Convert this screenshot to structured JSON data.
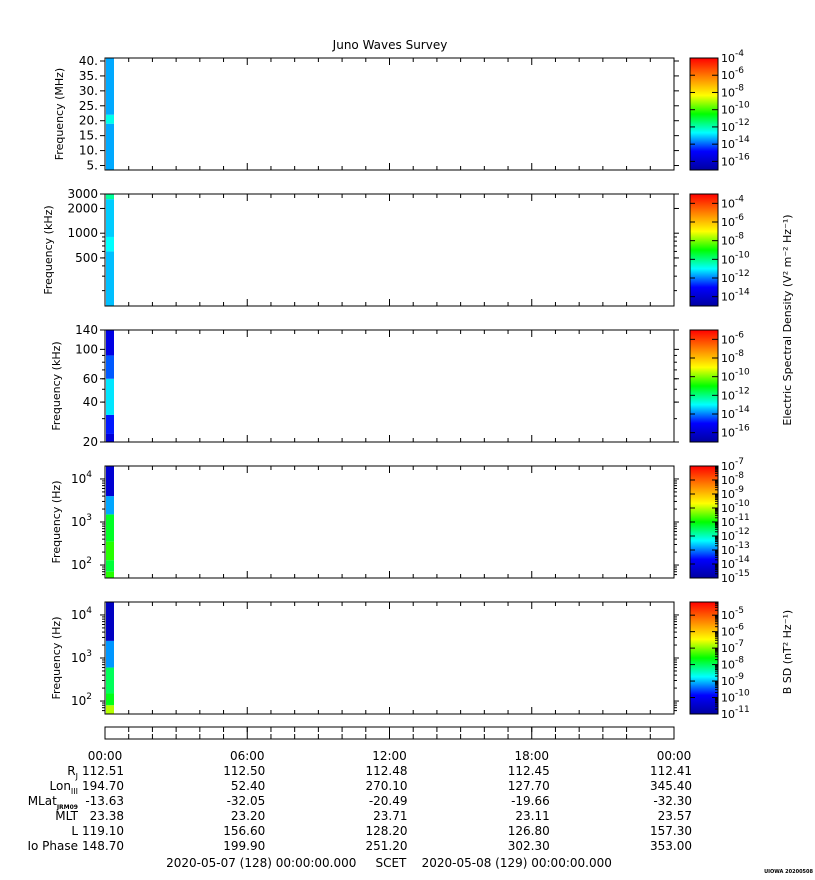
{
  "chart_data": {
    "type": "heatmap",
    "title": "Juno Waves Survey",
    "colormap": [
      "#0000a0",
      "#0000ff",
      "#00ffff",
      "#00ff00",
      "#ffff00",
      "#ff8000",
      "#ff0000"
    ],
    "panels": [
      {
        "ylabel": "Frequency (MHz)",
        "y_scale": "linear",
        "ylim": [
          3.5,
          41
        ],
        "yticks": [
          {
            "v": 5,
            "t": "5."
          },
          {
            "v": 10,
            "t": "10."
          },
          {
            "v": 15,
            "t": "15."
          },
          {
            "v": 20,
            "t": "20."
          },
          {
            "v": 25,
            "t": "25."
          },
          {
            "v": 30,
            "t": "30."
          },
          {
            "v": 35,
            "t": "35."
          },
          {
            "v": 40,
            "t": "40."
          }
        ],
        "cbar": {
          "range": [
            -17,
            -4
          ],
          "ticks": [
            -4,
            -6,
            -8,
            -10,
            -12,
            -14,
            -16
          ]
        },
        "column": [
          {
            "from": 3.5,
            "to": 19,
            "value": -13.4
          },
          {
            "from": 19,
            "to": 22,
            "value": -12.5
          },
          {
            "from": 22,
            "to": 41,
            "value": -13.4
          }
        ]
      },
      {
        "ylabel": "Frequency (kHz)",
        "y_scale": "log",
        "ylim": [
          130,
          3000
        ],
        "yticks": [
          {
            "v": 500,
            "t": "500"
          },
          {
            "v": 1000,
            "t": "1000"
          },
          {
            "v": 2000,
            "t": "2000"
          },
          {
            "v": 3000,
            "t": "3000"
          }
        ],
        "cbar": {
          "range": [
            -15,
            -3
          ],
          "ticks": [
            -4,
            -6,
            -8,
            -10,
            -12,
            -14
          ]
        },
        "column": [
          {
            "from": 130,
            "to": 600,
            "value": -11.5
          },
          {
            "from": 600,
            "to": 900,
            "value": -11.0
          },
          {
            "from": 900,
            "to": 2600,
            "value": -11.4
          },
          {
            "from": 2600,
            "to": 3000,
            "value": -10.2
          }
        ]
      },
      {
        "ylabel": "Frequency (kHz)",
        "y_scale": "log",
        "ylim": [
          20,
          140
        ],
        "yticks": [
          {
            "v": 20,
            "t": "20"
          },
          {
            "v": 40,
            "t": "40"
          },
          {
            "v": 60,
            "t": "60"
          },
          {
            "v": 100,
            "t": "100"
          },
          {
            "v": 140,
            "t": "140"
          }
        ],
        "cbar": {
          "range": [
            -17,
            -5
          ],
          "ticks": [
            -6,
            -8,
            -10,
            -12,
            -14,
            -16
          ]
        },
        "column": [
          {
            "from": 20,
            "to": 23,
            "value": -15.8
          },
          {
            "from": 23,
            "to": 32,
            "value": -14.8
          },
          {
            "from": 32,
            "to": 60,
            "value": -13.2
          },
          {
            "from": 60,
            "to": 90,
            "value": -14.3
          },
          {
            "from": 90,
            "to": 140,
            "value": -15.6
          }
        ]
      },
      {
        "ylabel": "Frequency (Hz)",
        "y_scale": "log",
        "ylim": [
          50,
          20000
        ],
        "yticks": [
          {
            "v": 100,
            "t": "10",
            "e": "2"
          },
          {
            "v": 1000,
            "t": "10",
            "e": "3"
          },
          {
            "v": 10000,
            "t": "10",
            "e": "4"
          }
        ],
        "cbar": {
          "range": [
            -15,
            -7
          ],
          "ticks": [
            -7,
            -8,
            -9,
            -10,
            -11,
            -12,
            -13,
            -14,
            -15
          ]
        },
        "column": [
          {
            "from": 50,
            "to": 70,
            "value": -10.8
          },
          {
            "from": 70,
            "to": 130,
            "value": -11.3
          },
          {
            "from": 130,
            "to": 350,
            "value": -10.8
          },
          {
            "from": 350,
            "to": 1500,
            "value": -11.2
          },
          {
            "from": 1500,
            "to": 4000,
            "value": -12.8
          },
          {
            "from": 4000,
            "to": 20000,
            "value": -14.3
          }
        ]
      },
      {
        "ylabel": "B SD (nT² Hz⁻¹)",
        "panel_ylabel": "Frequency (Hz)",
        "y_scale": "log",
        "ylim": [
          50,
          20000
        ],
        "yticks": [
          {
            "v": 100,
            "t": "10",
            "e": "2"
          },
          {
            "v": 1000,
            "t": "10",
            "e": "3"
          },
          {
            "v": 10000,
            "t": "10",
            "e": "4"
          }
        ],
        "cbar": {
          "range": [
            -11,
            -4.2
          ],
          "ticks": [
            -5,
            -6,
            -7,
            -8,
            -9,
            -10,
            -11
          ]
        },
        "column": [
          {
            "from": 50,
            "to": 80,
            "value": -6.8
          },
          {
            "from": 80,
            "to": 150,
            "value": -7.7
          },
          {
            "from": 150,
            "to": 600,
            "value": -8.0
          },
          {
            "from": 600,
            "to": 2500,
            "value": -9.2
          },
          {
            "from": 2500,
            "to": 20000,
            "value": -10.6
          }
        ]
      }
    ],
    "shared_cbar_label": "Electric Spectral Density (V² m⁻² Hz⁻¹)",
    "time_labels": [
      "00:00",
      "06:00",
      "12:00",
      "18:00",
      "00:00"
    ],
    "ephemeris": [
      {
        "label": "R",
        "sub": "J",
        "values": [
          "112.51",
          "112.50",
          "112.48",
          "112.45",
          "112.41"
        ]
      },
      {
        "label": "Lon",
        "sub": "III",
        "values": [
          "194.70",
          "52.40",
          "270.10",
          "127.70",
          "345.40"
        ]
      },
      {
        "label": "MLat",
        "sub": "JRM09",
        "values": [
          "-13.63",
          "-32.05",
          "-20.49",
          "-19.66",
          "-32.30"
        ]
      },
      {
        "label": "MLT",
        "sub": "",
        "values": [
          "23.38",
          "23.20",
          "23.71",
          "23.11",
          "23.57"
        ]
      },
      {
        "label": "L",
        "sub": "",
        "values": [
          "119.10",
          "156.60",
          "128.20",
          "126.80",
          "157.30"
        ]
      },
      {
        "label": "Io Phase",
        "sub": "",
        "values": [
          "148.70",
          "199.90",
          "251.20",
          "302.30",
          "353.00"
        ]
      }
    ],
    "footer": "2020-05-07 (128) 00:00:00.000     SCET    2020-05-08 (129) 00:00:00.000",
    "watermark": "UIOWA 20200508"
  }
}
